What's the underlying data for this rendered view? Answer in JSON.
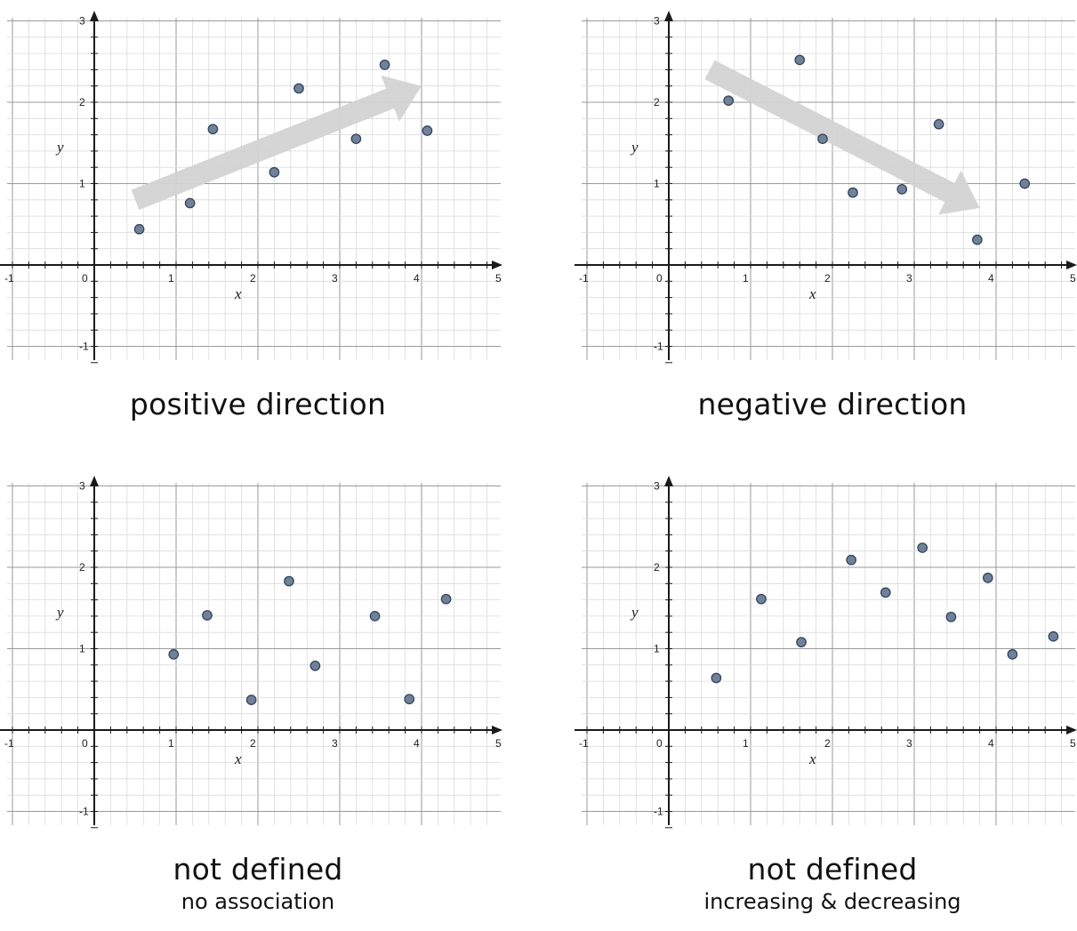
{
  "chart_data": [
    {
      "type": "scatter",
      "caption": "positive direction",
      "subcaption": "",
      "xlabel": "x",
      "ylabel": "y",
      "xlim": [
        -1,
        5
      ],
      "ylim": [
        -1,
        3
      ],
      "x_ticks": [
        "-1",
        "0",
        "1",
        "2",
        "3",
        "4",
        "5"
      ],
      "y_ticks": [
        "-1",
        "1",
        "2",
        "3"
      ],
      "grid": true,
      "trend_arrow": {
        "from": [
          0.5,
          0.8
        ],
        "to": [
          4.0,
          2.2
        ]
      },
      "points": [
        [
          0.55,
          0.44
        ],
        [
          1.17,
          0.76
        ],
        [
          1.45,
          1.67
        ],
        [
          2.2,
          1.14
        ],
        [
          2.5,
          2.17
        ],
        [
          3.2,
          1.55
        ],
        [
          3.55,
          2.46
        ],
        [
          4.07,
          1.65
        ]
      ]
    },
    {
      "type": "scatter",
      "caption": "negative direction",
      "subcaption": "",
      "xlabel": "x",
      "ylabel": "y",
      "xlim": [
        -1,
        5
      ],
      "ylim": [
        -1,
        3
      ],
      "x_ticks": [
        "-1",
        "0",
        "1",
        "2",
        "3",
        "4",
        "5"
      ],
      "y_ticks": [
        "-1",
        "1",
        "2",
        "3"
      ],
      "grid": true,
      "trend_arrow": {
        "from": [
          0.5,
          2.4
        ],
        "to": [
          3.8,
          0.7
        ]
      },
      "points": [
        [
          0.73,
          2.02
        ],
        [
          1.6,
          2.52
        ],
        [
          1.88,
          1.55
        ],
        [
          2.25,
          0.89
        ],
        [
          2.85,
          0.93
        ],
        [
          3.3,
          1.73
        ],
        [
          3.77,
          0.31
        ],
        [
          4.35,
          1.0
        ]
      ]
    },
    {
      "type": "scatter",
      "caption": "not defined",
      "subcaption": "no association",
      "xlabel": "x",
      "ylabel": "y",
      "xlim": [
        -1,
        5
      ],
      "ylim": [
        -1,
        3
      ],
      "x_ticks": [
        "-1",
        "0",
        "1",
        "2",
        "3",
        "4",
        "5"
      ],
      "y_ticks": [
        "-1",
        "1",
        "2",
        "3"
      ],
      "grid": true,
      "points": [
        [
          0.97,
          0.93
        ],
        [
          1.38,
          1.41
        ],
        [
          1.92,
          0.37
        ],
        [
          2.38,
          1.83
        ],
        [
          2.7,
          0.79
        ],
        [
          3.43,
          1.4
        ],
        [
          3.85,
          0.38
        ],
        [
          4.3,
          1.61
        ]
      ]
    },
    {
      "type": "scatter",
      "caption": "not defined",
      "subcaption": "increasing & decreasing",
      "xlabel": "x",
      "ylabel": "y",
      "xlim": [
        -1,
        5
      ],
      "ylim": [
        -1,
        3
      ],
      "x_ticks": [
        "-1",
        "0",
        "1",
        "2",
        "3",
        "4",
        "5"
      ],
      "y_ticks": [
        "-1",
        "1",
        "2",
        "3"
      ],
      "grid": true,
      "points": [
        [
          0.58,
          0.64
        ],
        [
          1.13,
          1.61
        ],
        [
          1.62,
          1.08
        ],
        [
          2.23,
          2.09
        ],
        [
          2.65,
          1.69
        ],
        [
          3.1,
          2.24
        ],
        [
          3.45,
          1.39
        ],
        [
          3.9,
          1.87
        ],
        [
          4.2,
          0.93
        ],
        [
          4.7,
          1.15
        ]
      ]
    }
  ],
  "colors": {
    "point_fill": "#6f829b",
    "point_stroke": "#37455a",
    "major_grid": "#9a9a9a",
    "minor_grid": "#dadada",
    "axis": "#1a1a1a",
    "arrow": "#d3d3d3"
  }
}
